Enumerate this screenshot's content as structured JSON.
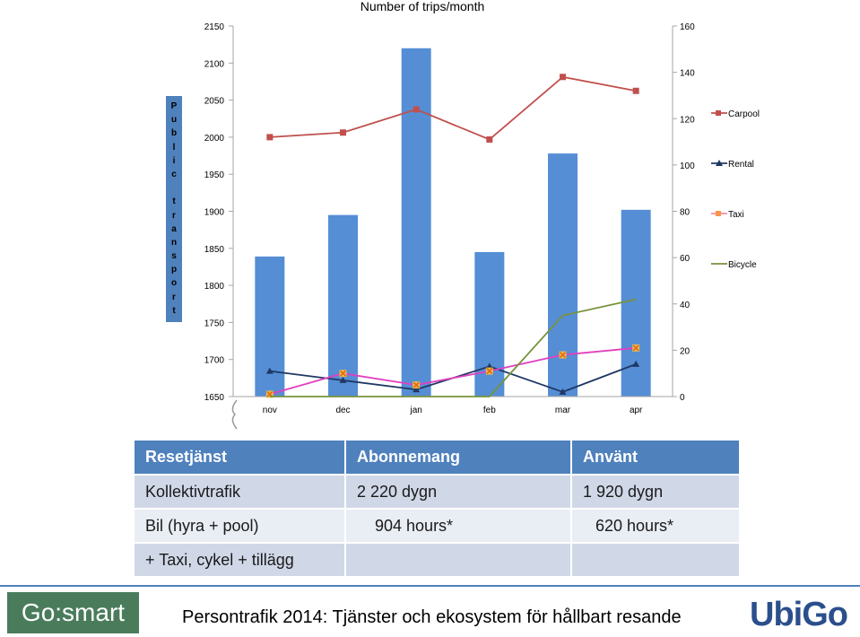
{
  "chart_data": {
    "type": "bar",
    "title": "Number of trips/month",
    "categories": [
      "nov",
      "dec",
      "jan",
      "feb",
      "mar",
      "apr"
    ],
    "left_axis": {
      "label": "Public transport",
      "ylim": [
        1650,
        2150
      ],
      "ticks": [
        1650,
        1700,
        1750,
        1800,
        1850,
        1900,
        1950,
        2000,
        2050,
        2100,
        2150
      ]
    },
    "right_axis": {
      "ylim": [
        0,
        160
      ],
      "ticks": [
        0,
        20,
        40,
        60,
        80,
        100,
        120,
        140,
        160
      ]
    },
    "bars": {
      "axis": "left",
      "color": "#558ed5",
      "values": [
        1839,
        1895,
        2120,
        1845,
        1978,
        1902
      ]
    },
    "series": [
      {
        "name": "Carpool",
        "axis": "right",
        "color": "#c0504d",
        "marker": "square",
        "values": [
          112,
          114,
          124,
          111,
          138,
          132
        ]
      },
      {
        "name": "Rental",
        "axis": "right",
        "color": "#1f3864",
        "marker": "triangle",
        "values": [
          11,
          7,
          3,
          13,
          2,
          14
        ]
      },
      {
        "name": "Taxi",
        "axis": "right",
        "color": "#e040c0",
        "marker": "x",
        "values": [
          1,
          10,
          5,
          11,
          18,
          21
        ]
      },
      {
        "name": "Bicycle",
        "axis": "right",
        "color": "#77933c",
        "marker": "none",
        "values": [
          0,
          0,
          0,
          0,
          35,
          42
        ]
      }
    ],
    "grid": false,
    "legend_position": "right"
  },
  "table": {
    "headers": [
      "Resetjänst",
      "Abonnemang",
      "Använt"
    ],
    "rows": [
      [
        "Kollektivtrafik",
        "2 220 dygn",
        "1 920 dygn"
      ],
      [
        "Bil (hyra + pool)",
        "904 hours*",
        "620 hours*"
      ],
      [
        "+ Taxi, cykel + tillägg",
        "",
        ""
      ]
    ]
  },
  "footer": {
    "brand": "Go:smart",
    "text": "Persontrafik 2014: Tjänster och ekosystem för hållbart resande",
    "logo": "UbiGo"
  }
}
